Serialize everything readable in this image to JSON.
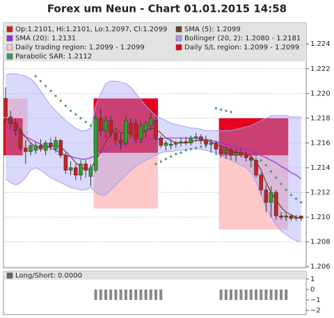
{
  "chart_data": [
    {
      "type": "candlestick",
      "title": "Forex um Neun - Chart 01.01.2015 14:58",
      "ylim": [
        1.2059,
        1.2257
      ],
      "yticks": [
        1.206,
        1.208,
        {
          "value": 1.21,
          "label": "1.210"
        },
        1.212,
        1.214,
        1.216,
        1.218,
        {
          "value": 1.22,
          "label": "1.220"
        },
        1.222,
        1.224
      ],
      "grid": true,
      "series": [
        {
          "type": "candlestick",
          "name": "Op:1.2101, Hi:1.2101, Lo:1.2097, Cl:1.2099",
          "color": "#cc1f1f",
          "up_color": "#2ca02c",
          "open": [
            1.2196,
            1.2181,
            1.2176,
            1.217,
            1.2156,
            1.2153,
            1.2154,
            1.2158,
            1.2154,
            1.216,
            1.2155,
            1.2162,
            1.215,
            1.2138,
            1.214,
            1.2134,
            1.2143,
            1.2133,
            1.2138,
            1.218,
            1.217,
            1.2178,
            1.2168,
            1.2162,
            1.216,
            1.2176,
            1.2176,
            1.2163,
            1.217,
            1.2174,
            1.2178,
            1.2164,
            1.2158,
            1.2158,
            1.2159,
            1.216,
            1.2161,
            1.216,
            1.2164,
            1.2165,
            1.2162,
            1.2159,
            1.216,
            1.2155,
            1.2152,
            1.2154,
            1.215,
            1.2152,
            1.215,
            1.2148,
            1.2146,
            1.2134,
            1.2122,
            1.2112,
            1.212,
            1.2101,
            1.21,
            1.2101,
            1.2099,
            1.2101
          ],
          "high": [
            1.2205,
            1.2186,
            1.218,
            1.2172,
            1.2162,
            1.216,
            1.2161,
            1.2163,
            1.2162,
            1.2164,
            1.2165,
            1.2163,
            1.2152,
            1.2145,
            1.2143,
            1.2146,
            1.2146,
            1.2143,
            1.2182,
            1.2188,
            1.2182,
            1.2182,
            1.217,
            1.2168,
            1.2182,
            1.218,
            1.218,
            1.2178,
            1.2178,
            1.2184,
            1.2181,
            1.2166,
            1.2162,
            1.2163,
            1.2162,
            1.2164,
            1.2165,
            1.2166,
            1.2168,
            1.2167,
            1.2166,
            1.2163,
            1.2162,
            1.2158,
            1.2157,
            1.2156,
            1.2155,
            1.2156,
            1.2153,
            1.215,
            1.2148,
            1.2136,
            1.2126,
            1.2125,
            1.2122,
            1.2104,
            1.2103,
            1.2102,
            1.2102,
            1.2101
          ],
          "low": [
            1.2176,
            1.2172,
            1.2166,
            1.2154,
            1.2143,
            1.215,
            1.2151,
            1.2153,
            1.215,
            1.2154,
            1.2152,
            1.2148,
            1.2135,
            1.2134,
            1.213,
            1.213,
            1.2132,
            1.2125,
            1.2136,
            1.2165,
            1.2164,
            1.2165,
            1.2158,
            1.2155,
            1.2158,
            1.2164,
            1.216,
            1.216,
            1.2164,
            1.217,
            1.2162,
            1.2156,
            1.2154,
            1.2155,
            1.2156,
            1.2157,
            1.2158,
            1.2158,
            1.2161,
            1.2159,
            1.2156,
            1.2152,
            1.215,
            1.2148,
            1.2147,
            1.2146,
            1.2145,
            1.2148,
            1.2145,
            1.214,
            1.2132,
            1.2118,
            1.2104,
            1.21,
            1.2098,
            1.2098,
            1.2097,
            1.2097,
            1.2097,
            1.2097
          ],
          "close": [
            1.2181,
            1.2176,
            1.217,
            1.2156,
            1.2153,
            1.2158,
            1.2158,
            1.2155,
            1.216,
            1.2157,
            1.2162,
            1.215,
            1.2138,
            1.214,
            1.2134,
            1.2143,
            1.2138,
            1.214,
            1.218,
            1.217,
            1.2178,
            1.2168,
            1.2162,
            1.216,
            1.2178,
            1.2168,
            1.2163,
            1.2174,
            1.2176,
            1.218,
            1.2164,
            1.2158,
            1.216,
            1.2159,
            1.216,
            1.2161,
            1.216,
            1.2164,
            1.2165,
            1.2162,
            1.2159,
            1.216,
            1.2155,
            1.2152,
            1.2154,
            1.215,
            1.2152,
            1.215,
            1.2148,
            1.2146,
            1.2134,
            1.2122,
            1.2112,
            1.212,
            1.2101,
            1.21,
            1.2101,
            1.2099,
            1.21,
            1.2099
          ]
        },
        {
          "type": "line",
          "name": "SMA (5): 1.2099",
          "color": "#6b3e1e",
          "values": [
            1.218,
            1.2178,
            1.2175,
            1.217,
            1.2165,
            1.216,
            1.2157,
            1.2156,
            1.2157,
            1.2157,
            1.2158,
            1.2157,
            1.2153,
            1.2149,
            1.2144,
            1.2141,
            1.2138,
            1.2139,
            1.2146,
            1.2153,
            1.2161,
            1.2167,
            1.2172,
            1.2168,
            1.2169,
            1.2167,
            1.2166,
            1.2167,
            1.217,
            1.2172,
            1.2171,
            1.2168,
            1.2164,
            1.2162,
            1.216,
            1.216,
            1.216,
            1.2161,
            1.2162,
            1.2162,
            1.2162,
            1.2161,
            1.2159,
            1.2157,
            1.2156,
            1.2154,
            1.2152,
            1.2152,
            1.2151,
            1.2149,
            1.2145,
            1.2138,
            1.2128,
            1.212,
            1.2114,
            1.2108,
            1.2104,
            1.2102,
            1.21,
            1.2099
          ]
        },
        {
          "type": "line",
          "name": "SMA (20): 1.2131",
          "color": "#9b30d9",
          "values": [
            1.2173,
            1.2171,
            1.2169,
            1.2167,
            1.2165,
            1.2163,
            1.2161,
            1.2159,
            1.2157,
            1.2156,
            1.2154,
            1.2152,
            1.215,
            1.2149,
            1.2148,
            1.2147,
            1.2147,
            1.2148,
            1.215,
            1.2152,
            1.2154,
            1.2156,
            1.2157,
            1.2158,
            1.2159,
            1.216,
            1.2161,
            1.2161,
            1.2162,
            1.2163,
            1.2163,
            1.2163,
            1.2164,
            1.2164,
            1.2164,
            1.2164,
            1.2164,
            1.2164,
            1.2164,
            1.2163,
            1.2163,
            1.2162,
            1.2161,
            1.216,
            1.2159,
            1.2158,
            1.2157,
            1.2156,
            1.2155,
            1.2154,
            1.2152,
            1.215,
            1.2148,
            1.2146,
            1.2144,
            1.2141,
            1.2139,
            1.2136,
            1.2134,
            1.2131
          ]
        },
        {
          "type": "band",
          "name": "Bollinger (20, 2): 1.2080 - 1.2181",
          "color": "#9f9ff5",
          "upper": [
            1.2215,
            1.2216,
            1.2216,
            1.2215,
            1.2214,
            1.2212,
            1.2208,
            1.2202,
            1.2196,
            1.219,
            1.2186,
            1.2182,
            1.2178,
            1.2175,
            1.2172,
            1.217,
            1.217,
            1.2172,
            1.219,
            1.22,
            1.2208,
            1.221,
            1.221,
            1.2209,
            1.2208,
            1.2205,
            1.22,
            1.2195,
            1.219,
            1.2186,
            1.2182,
            1.218,
            1.2178,
            1.2176,
            1.2175,
            1.2174,
            1.2173,
            1.2172,
            1.2172,
            1.2171,
            1.217,
            1.217,
            1.217,
            1.217,
            1.217,
            1.217,
            1.2171,
            1.2172,
            1.2173,
            1.2174,
            1.2176,
            1.2178,
            1.218,
            1.2182,
            1.2182,
            1.2182,
            1.2182,
            1.2181,
            1.2181,
            1.2181
          ],
          "lower": [
            1.2131,
            1.2128,
            1.2126,
            1.2128,
            1.2132,
            1.2138,
            1.214,
            1.2138,
            1.2135,
            1.2132,
            1.213,
            1.2128,
            1.2126,
            1.2124,
            1.2123,
            1.2122,
            1.2122,
            1.2124,
            1.212,
            1.2118,
            1.2118,
            1.2122,
            1.2126,
            1.213,
            1.2134,
            1.2138,
            1.2141,
            1.2144,
            1.2146,
            1.2148,
            1.215,
            1.2152,
            1.2153,
            1.2153,
            1.2154,
            1.2154,
            1.2155,
            1.2155,
            1.2155,
            1.2155,
            1.2154,
            1.2153,
            1.2152,
            1.215,
            1.2148,
            1.2146,
            1.2144,
            1.2142,
            1.214,
            1.2136,
            1.2128,
            1.2118,
            1.2108,
            1.21,
            1.2094,
            1.2089,
            1.2086,
            1.2083,
            1.2081,
            1.208
          ]
        },
        {
          "type": "region",
          "name": "Daily trading region: 1.2099 - 1.2099",
          "color": "#ffc8c8",
          "regions": [
            {
              "start": 0,
              "end": 4,
              "low": 1.2155,
              "high": 1.2196
            },
            {
              "start": 18,
              "end": 30,
              "low": 1.2107,
              "high": 1.2152
            },
            {
              "start": 43,
              "end": 56,
              "low": 1.209,
              "high": 1.215
            }
          ]
        },
        {
          "type": "region",
          "name": "Daily S/L region: 1.2099 - 1.2099",
          "color": "#e8001c",
          "regions": [
            {
              "start": 0,
              "end": 3,
              "low": 1.215,
              "high": 1.218
            },
            {
              "start": 18,
              "end": 30,
              "low": 1.2152,
              "high": 1.2196
            },
            {
              "start": 43,
              "end": 56,
              "low": 1.215,
              "high": 1.218
            }
          ]
        },
        {
          "type": "dots",
          "name": "Parabolic SAR: 1.2112",
          "color": "#3c9a5a",
          "values": [
            null,
            null,
            null,
            null,
            null,
            null,
            1.2214,
            1.221,
            1.2206,
            1.2202,
            1.2198,
            1.2194,
            1.219,
            1.2186,
            1.2183,
            1.218,
            1.2177,
            1.2174,
            null,
            null,
            null,
            null,
            null,
            null,
            null,
            null,
            null,
            null,
            null,
            null,
            1.2143,
            1.2145,
            1.2147,
            1.2149,
            1.2151,
            1.2152,
            1.2154,
            1.2155,
            1.2156,
            1.2157,
            1.2158,
            1.2159,
            1.2188,
            1.2187,
            1.2186,
            1.2185,
            null,
            null,
            null,
            null,
            1.215,
            1.2146,
            1.2142,
            1.2137,
            1.2132,
            1.2127,
            1.2122,
            1.2118,
            1.2115,
            1.2112
          ]
        }
      ]
    },
    {
      "type": "bar",
      "name": "Long/Short: 0.0000",
      "color": "#888888",
      "ylim": [
        -2.4,
        1.6
      ],
      "yticks": [
        1,
        0,
        {
          "value": -1,
          "label": "−1"
        },
        {
          "value": -2,
          "label": "−2"
        }
      ],
      "values": [
        0,
        0,
        0,
        0,
        0,
        0,
        0,
        0,
        0,
        0,
        0,
        0,
        0,
        0,
        0,
        0,
        0,
        0,
        -1,
        -1,
        -1,
        -1,
        -1,
        -1,
        -1,
        -1,
        -1,
        -1,
        -1,
        -1,
        -1,
        -1,
        0,
        0,
        0,
        0,
        0,
        0,
        0,
        0,
        0,
        0,
        0,
        -1,
        -1,
        -1,
        -1,
        -1,
        -1,
        -1,
        -1,
        -1,
        -1,
        -1,
        -1,
        -1,
        -1,
        0,
        0,
        0
      ]
    }
  ]
}
